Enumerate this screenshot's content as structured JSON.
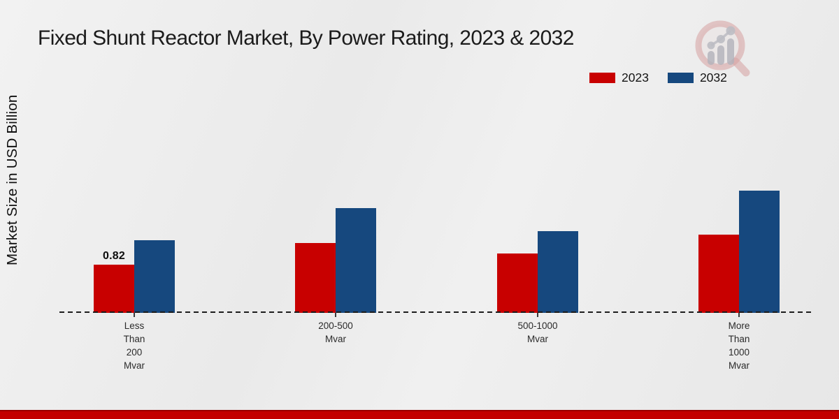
{
  "title": "Fixed Shunt Reactor Market, By Power Rating, 2023 & 2032",
  "colors": {
    "series_2023": "#c80000",
    "series_2032": "#16487e",
    "bottom_bar": "#c30000",
    "baseline": "#1c1c1c"
  },
  "watermark": {
    "name": "magnifier-bar-chart-logo"
  },
  "chart_data": {
    "type": "bar",
    "title": "Fixed Shunt Reactor Market, By Power Rating, 2023 & 2032",
    "xlabel": "",
    "ylabel": "Market Size in USD Billion",
    "categories": [
      "Less Than 200 Mvar",
      "200-500 Mvar",
      "500-1000 Mvar",
      "More Than 1000 Mvar"
    ],
    "series": [
      {
        "name": "2023",
        "color": "#c80000",
        "values": [
          0.82,
          1.19,
          1.01,
          1.33
        ]
      },
      {
        "name": "2032",
        "color": "#16487e",
        "values": [
          1.24,
          1.79,
          1.39,
          2.08
        ]
      }
    ],
    "annotations": [
      {
        "series": "2023",
        "category_index": 0,
        "text": "0.82"
      }
    ],
    "legend_position": "top-right",
    "grid": false,
    "baseline_style": "dashed",
    "ylim": [
      0,
      2.4
    ]
  }
}
